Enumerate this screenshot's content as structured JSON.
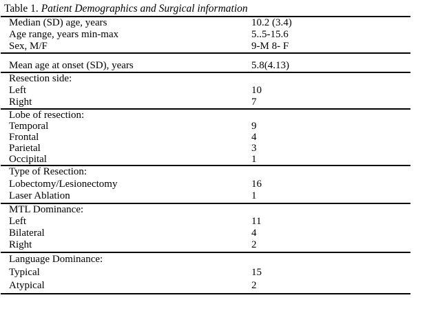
{
  "title": {
    "prefix": "Table 1.",
    "text": "Patient Demographics and Surgical information"
  },
  "sections": {
    "demographics": {
      "rows": [
        {
          "label": "Median (SD) age, years",
          "value": "10.2 (3.4)"
        },
        {
          "label": "Age range, years min-max",
          "value": "5..5-15.6"
        },
        {
          "label": "Sex, M/F",
          "value": "9-M 8- F"
        }
      ]
    },
    "onset": {
      "rows": [
        {
          "label": "Mean age at onset (SD), years",
          "value": "5.8(4.13)"
        }
      ]
    },
    "resection_side": {
      "rows": [
        {
          "label": "Resection side:",
          "value": ""
        },
        {
          "label": "Left",
          "value": "10"
        },
        {
          "label": "Right",
          "value": "7"
        }
      ]
    },
    "lobe_of_resection": {
      "rows": [
        {
          "label": "Lobe of resection:",
          "value": ""
        },
        {
          "label": "Temporal",
          "value": "9"
        },
        {
          "label": "Frontal",
          "value": "4"
        },
        {
          "label": "Parietal",
          "value": "3"
        },
        {
          "label": "Occipital",
          "value": "1"
        }
      ]
    },
    "type_of_resection": {
      "rows": [
        {
          "label": "Type of Resection:",
          "value": ""
        },
        {
          "label": "Lobectomy/Lesionectomy",
          "value": "16"
        },
        {
          "label": "Laser Ablation",
          "value": "1"
        }
      ]
    },
    "mtl_dominance": {
      "rows": [
        {
          "label": "MTL Dominance:",
          "value": ""
        },
        {
          "label": "Left",
          "value": "11"
        },
        {
          "label": "Bilateral",
          "value": "4"
        },
        {
          "label": "Right",
          "value": "2"
        }
      ]
    },
    "language_dominance": {
      "rows": [
        {
          "label": "Language Dominance:",
          "value": ""
        },
        {
          "label": "Typical",
          "value": "15"
        },
        {
          "label": "Atypical",
          "value": "2"
        }
      ]
    }
  }
}
